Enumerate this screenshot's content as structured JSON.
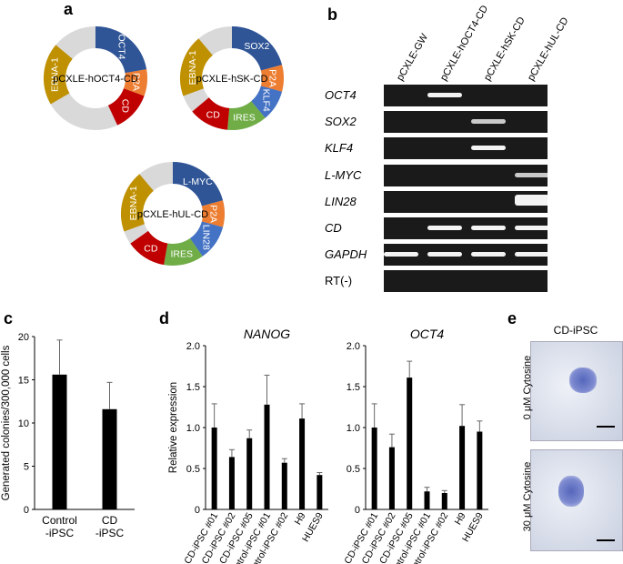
{
  "panels": {
    "a": "a",
    "b": "b",
    "c": "c",
    "d": "d",
    "e": "e"
  },
  "panel_a": {
    "plasmids": [
      {
        "name": "pCXLE-hOCT4-CD",
        "segments": [
          "OCT4",
          "P2A",
          "CD",
          "EBNA-1"
        ]
      },
      {
        "name": "pCXLE-hSK-CD",
        "segments": [
          "SOX2",
          "P2A",
          "KLF4",
          "IRES",
          "CD",
          "EBNA-1"
        ]
      },
      {
        "name": "pCXLE-hUL-CD",
        "segments": [
          "L-MYC",
          "P2A",
          "LIN28",
          "IRES",
          "CD",
          "EBNA-1"
        ]
      }
    ],
    "colors": {
      "oct_sox_lmyc": "#2f5597",
      "p2a": "#ed7d31",
      "klf4_lin28": "#4472c4",
      "ires": "#70ad47",
      "cd": "#c00000",
      "ebna": "#bf9000",
      "backbone": "#d9d9d9"
    }
  },
  "panel_b": {
    "lanes": [
      "pCXLE-GW",
      "pCXLE-hOCT4-CD",
      "pCXLE-hSK-CD",
      "pCXLE-hUL-CD"
    ],
    "genes": [
      "OCT4",
      "SOX2",
      "KLF4",
      "L-MYC",
      "LIN28",
      "CD",
      "GAPDH",
      "RT(-)"
    ],
    "band_intensity": [
      [
        0,
        1,
        0,
        0
      ],
      [
        0,
        0,
        0.7,
        0
      ],
      [
        0,
        0,
        1,
        0
      ],
      [
        0,
        0,
        0,
        0.7
      ],
      [
        0,
        0,
        0,
        1
      ],
      [
        0,
        1,
        1,
        1
      ],
      [
        1,
        1,
        1,
        1
      ],
      [
        0,
        0,
        0,
        0
      ]
    ]
  },
  "chart_data": [
    {
      "type": "bar",
      "ylabel": "Generated colonies/300,000 cells",
      "categories": [
        "Control\n-iPSC",
        "CD\n-iPSC"
      ],
      "values": [
        15.6,
        11.6
      ],
      "errors": [
        4.0,
        3.1
      ],
      "ylim": [
        0,
        20
      ],
      "yticks": [
        "0",
        "5",
        "10",
        "15",
        "20"
      ]
    },
    {
      "type": "bar",
      "title": "NANOG",
      "ylabel": "Relative expression",
      "categories": [
        "CD-iPSC #01",
        "CD-iPSC #02",
        "CD-iPSC #05",
        "Control-iPSC #01",
        "Control-iPSC #02",
        "H9",
        "HUES9"
      ],
      "values": [
        1.0,
        0.64,
        0.87,
        1.28,
        0.57,
        1.11,
        0.42
      ],
      "errors": [
        0.29,
        0.09,
        0.1,
        0.36,
        0.05,
        0.18,
        0.03
      ],
      "ylim": [
        0,
        2.0
      ],
      "yticks": [
        "0",
        "0.5",
        "1.0",
        "1.5",
        "2.0"
      ]
    },
    {
      "type": "bar",
      "title": "OCT4",
      "categories": [
        "CD-iPSC #01",
        "CD-iPSC #02",
        "CD-iPSC #05",
        "Control-iPSC #01",
        "Control-iPSC #02",
        "H9",
        "HUES9"
      ],
      "values": [
        1.0,
        0.76,
        1.61,
        0.22,
        0.2,
        1.02,
        0.95
      ],
      "errors": [
        0.29,
        0.16,
        0.2,
        0.05,
        0.03,
        0.26,
        0.13
      ],
      "ylim": [
        0,
        2.0
      ],
      "yticks": [
        "0",
        "0.5",
        "1.0",
        "1.5",
        "2.0"
      ]
    }
  ],
  "panel_e": {
    "title": "CD-iPSC",
    "rows": [
      "0 μM Cytosine",
      "30 μM Cytosine"
    ]
  }
}
